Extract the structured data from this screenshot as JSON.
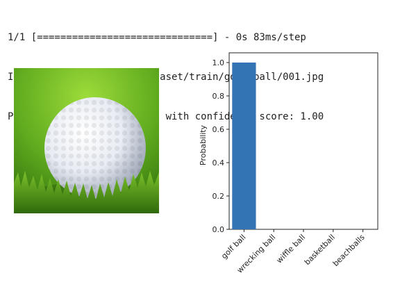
{
  "console": {
    "progress_line": "1/1 [==============================] - 0s 83ms/step",
    "image_line": "Image: ./drive/MyDrive/dataset/train/golf ball/001.jpg",
    "prediction_line": "Predicted class: golf ball with confidence score: 1.00"
  },
  "image": {
    "subject": "golf ball on grass",
    "colors": {
      "ball": "#f2f4f8",
      "grass": "#5faa1e",
      "grass_dark": "#3f7f12"
    }
  },
  "chart_data": {
    "type": "bar",
    "categories": [
      "golf ball",
      "wrecking ball",
      "wiffle ball",
      "basketball",
      "beachballs"
    ],
    "values": [
      1.0,
      0.0,
      0.0,
      0.0,
      0.0
    ],
    "title": "",
    "xlabel": "",
    "ylabel": "Probability",
    "ylim": [
      0,
      1.0
    ],
    "yticks": [
      "0.0",
      "0.2",
      "0.4",
      "0.6",
      "0.8",
      "1.0"
    ],
    "grid": false,
    "bar_color": "#3274b4"
  }
}
